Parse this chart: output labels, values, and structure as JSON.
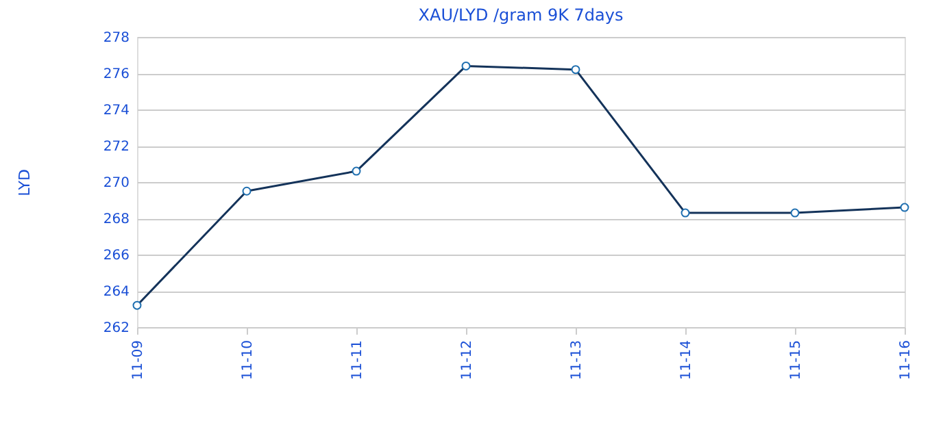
{
  "chart_data": {
    "type": "line",
    "title": "XAU/LYD /gram 9K 7days",
    "ylabel": "LYD",
    "categories": [
      "11-09",
      "11-10",
      "11-11",
      "11-12",
      "11-13",
      "11-14",
      "11-15",
      "11-16"
    ],
    "series": [
      {
        "color": "#14335a",
        "values": [
          263.2,
          269.5,
          270.6,
          276.4,
          276.2,
          268.3,
          268.3,
          268.6
        ]
      }
    ],
    "ylim": [
      262,
      278
    ],
    "yticks": [
      262,
      264,
      266,
      268,
      270,
      272,
      274,
      276,
      278
    ],
    "grid": "y",
    "marker": "circle",
    "line_style": "solid"
  }
}
